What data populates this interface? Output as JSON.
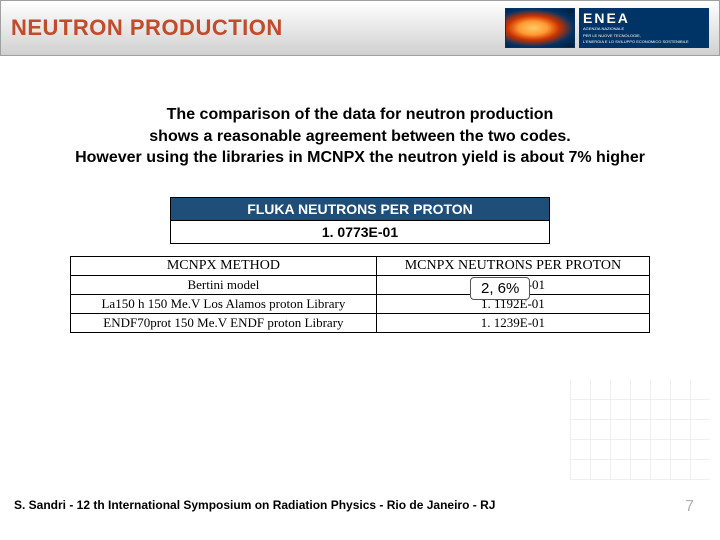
{
  "header": {
    "title": "NEUTRON PRODUCTION",
    "logo_main": "ENEA",
    "logo_sub1": "AGENZIA NAZIONALE",
    "logo_sub2": "PER LE NUOVE TECNOLOGIE,",
    "logo_sub3": "L'ENERGIA E LO SVILUPPO ECONOMICO SOSTENIBILE"
  },
  "body": {
    "line1": "The comparison of the data for neutron production",
    "line2": "shows a reasonable agreement between the two codes.",
    "line3": "However using the libraries in MCNPX the neutron yield is about 7% higher"
  },
  "fluka": {
    "header": "FLUKA NEUTRONS PER PROTON",
    "value": "1. 0773E-01",
    "header_bg": "#1f4e79",
    "header_color": "#ffffff"
  },
  "percent_box": "2, 6%",
  "mcnpx": {
    "col1_header": "MCNPX METHOD",
    "col2_header": "MCNPX NEUTRONS PER PROTON",
    "rows": [
      {
        "method": "Bertini model",
        "value": "1. 0485E-01"
      },
      {
        "method": "La150 h 150 Me.V Los Alamos proton Library",
        "value": "1. 1192E-01"
      },
      {
        "method": "ENDF70prot 150 Me.V ENDF proton Library",
        "value": "1. 1239E-01"
      }
    ]
  },
  "footer": {
    "text": "S. Sandri - 12 th International Symposium on Radiation Physics - Rio de Janeiro - RJ",
    "page": "7"
  },
  "colors": {
    "title_color": "#c14b2a",
    "background": "#ffffff",
    "table_border": "#000000"
  }
}
